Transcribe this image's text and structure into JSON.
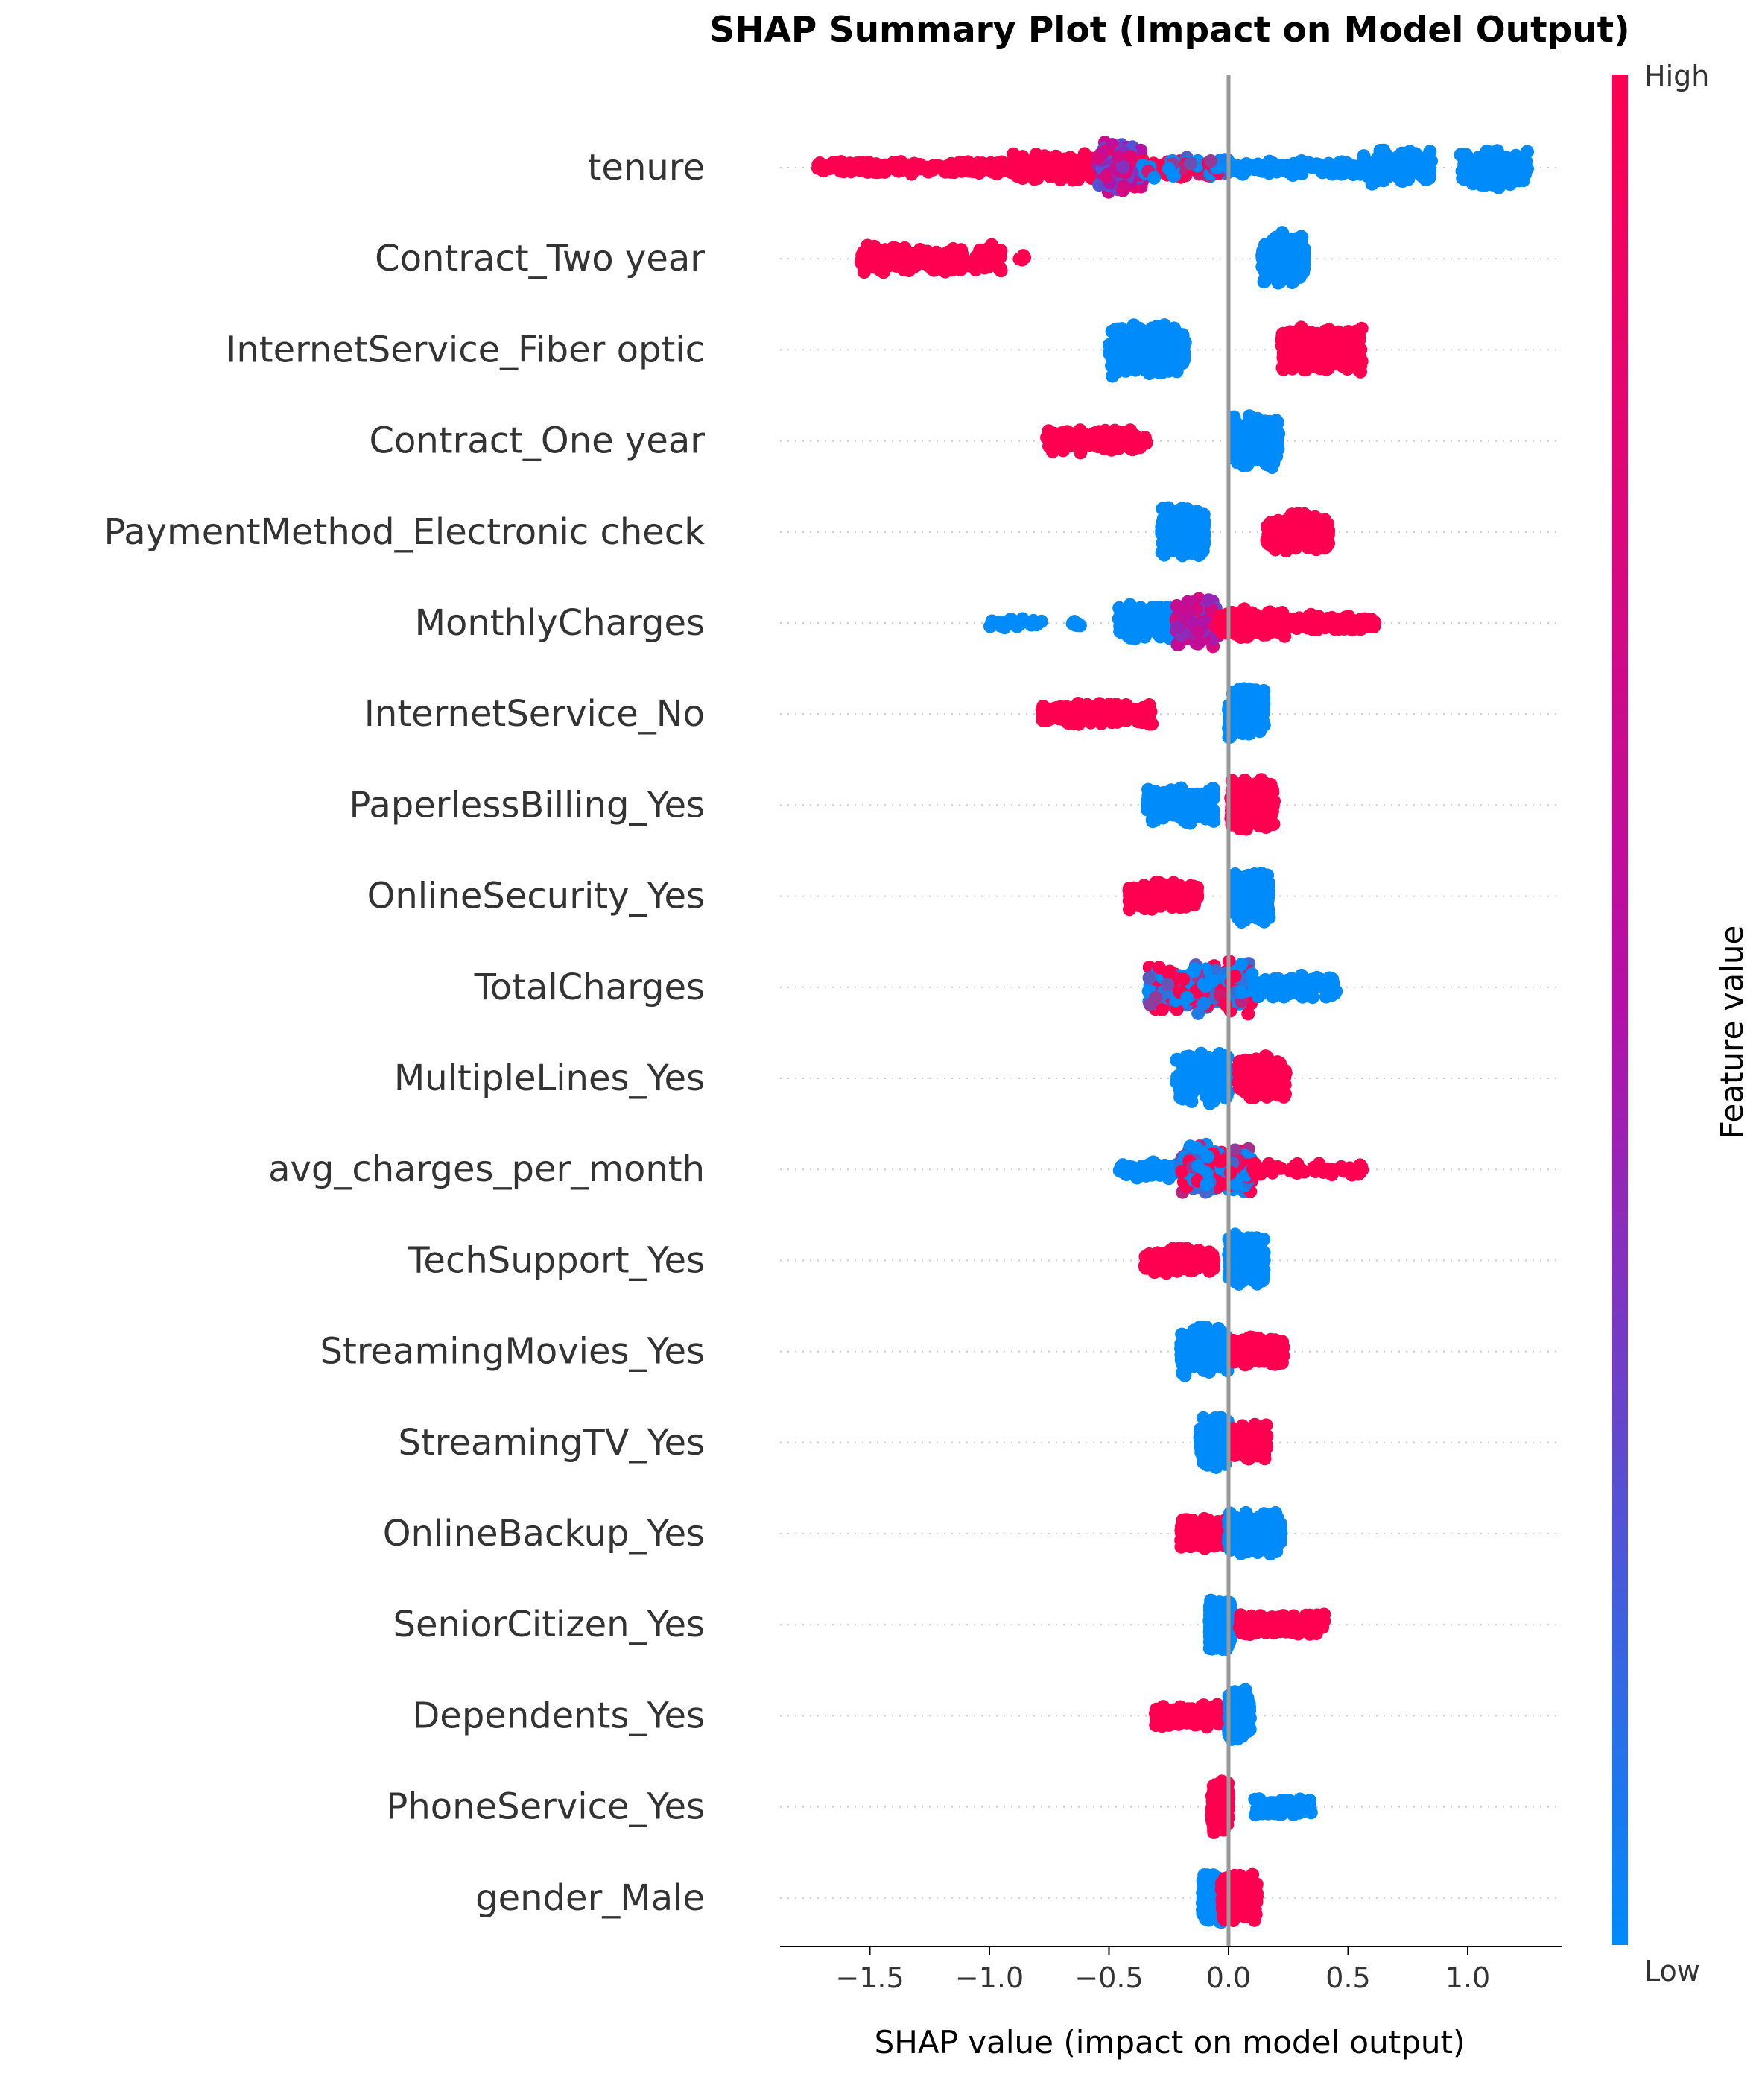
{
  "chart_data": {
    "type": "scatter",
    "subtype": "beeswarm",
    "title": "SHAP Summary Plot (Impact on Model Output)",
    "xlabel": "SHAP value (impact on model output)",
    "xlim": [
      -1.87,
      1.4
    ],
    "xticks": [
      -1.5,
      -1.0,
      -0.5,
      0.0,
      0.5,
      1.0
    ],
    "xtick_labels": [
      "−1.5",
      "−1.0",
      "−0.5",
      "0.0",
      "0.5",
      "1.0"
    ],
    "colorbar": {
      "label": "Feature value",
      "high_label": "High",
      "low_label": "Low",
      "low_color": "#008bfb",
      "high_color": "#ff0051",
      "mid_color": "#b410a8"
    },
    "zero_line_color": "#999999",
    "features": [
      {
        "name": "tenure",
        "clusters": [
          {
            "lo": -1.72,
            "hi": -0.9,
            "color": "high",
            "spread": 0.25,
            "n": 260
          },
          {
            "lo": -0.9,
            "hi": -0.55,
            "color": "high",
            "spread": 0.55,
            "n": 120
          },
          {
            "lo": -0.55,
            "hi": -0.36,
            "color": "mid",
            "spread": 1.0,
            "n": 170
          },
          {
            "lo": -0.36,
            "hi": 0.0,
            "color": "mixed",
            "spread": 0.4,
            "n": 120
          },
          {
            "lo": 0.0,
            "hi": 0.55,
            "color": "low",
            "spread": 0.3,
            "n": 130
          },
          {
            "lo": 0.55,
            "hi": 0.85,
            "color": "low",
            "spread": 0.7,
            "n": 120
          },
          {
            "lo": 0.97,
            "hi": 1.25,
            "color": "low",
            "spread": 0.8,
            "n": 130
          }
        ]
      },
      {
        "name": "Contract_Two year",
        "clusters": [
          {
            "lo": -1.54,
            "hi": -0.95,
            "color": "high",
            "spread": 0.55,
            "n": 220
          },
          {
            "lo": -0.88,
            "hi": -0.85,
            "color": "high",
            "spread": 0.15,
            "n": 4
          },
          {
            "lo": 0.14,
            "hi": 0.32,
            "color": "low",
            "spread": 1.0,
            "n": 230
          }
        ]
      },
      {
        "name": "InternetService_Fiber optic",
        "clusters": [
          {
            "lo": -0.5,
            "hi": -0.18,
            "color": "low",
            "spread": 1.0,
            "n": 260
          },
          {
            "lo": 0.22,
            "hi": 0.56,
            "color": "high",
            "spread": 0.9,
            "n": 260
          }
        ]
      },
      {
        "name": "Contract_One year",
        "clusters": [
          {
            "lo": -0.76,
            "hi": -0.34,
            "color": "high",
            "spread": 0.45,
            "n": 170
          },
          {
            "lo": 0.02,
            "hi": 0.21,
            "color": "low",
            "spread": 1.0,
            "n": 240
          }
        ]
      },
      {
        "name": "PaymentMethod_Electronic check",
        "clusters": [
          {
            "lo": -0.28,
            "hi": -0.1,
            "color": "low",
            "spread": 1.0,
            "n": 220
          },
          {
            "lo": 0.16,
            "hi": 0.42,
            "color": "high",
            "spread": 0.75,
            "n": 220
          }
        ]
      },
      {
        "name": "MonthlyCharges",
        "clusters": [
          {
            "lo": -1.0,
            "hi": -0.78,
            "color": "low",
            "spread": 0.2,
            "n": 25
          },
          {
            "lo": -0.66,
            "hi": -0.6,
            "color": "low",
            "spread": 0.15,
            "n": 6
          },
          {
            "lo": -0.46,
            "hi": -0.2,
            "color": "low",
            "spread": 0.7,
            "n": 130
          },
          {
            "lo": -0.22,
            "hi": -0.04,
            "color": "mid",
            "spread": 1.0,
            "n": 140
          },
          {
            "lo": -0.04,
            "hi": 0.25,
            "color": "high",
            "spread": 0.6,
            "n": 150
          },
          {
            "lo": 0.25,
            "hi": 0.62,
            "color": "high",
            "spread": 0.35,
            "n": 90
          }
        ]
      },
      {
        "name": "InternetService_No",
        "clusters": [
          {
            "lo": -0.78,
            "hi": -0.32,
            "color": "high",
            "spread": 0.45,
            "n": 200
          },
          {
            "lo": 0.0,
            "hi": 0.15,
            "color": "low",
            "spread": 1.0,
            "n": 220
          }
        ]
      },
      {
        "name": "PaperlessBilling_Yes",
        "clusters": [
          {
            "lo": -0.34,
            "hi": -0.06,
            "color": "low",
            "spread": 0.7,
            "n": 200
          },
          {
            "lo": 0.01,
            "hi": 0.19,
            "color": "high",
            "spread": 1.0,
            "n": 230
          }
        ]
      },
      {
        "name": "OnlineSecurity_Yes",
        "clusters": [
          {
            "lo": -0.42,
            "hi": -0.13,
            "color": "high",
            "spread": 0.55,
            "n": 190
          },
          {
            "lo": 0.02,
            "hi": 0.17,
            "color": "low",
            "spread": 1.0,
            "n": 220
          }
        ]
      },
      {
        "name": "TotalCharges",
        "clusters": [
          {
            "lo": -0.34,
            "hi": 0.1,
            "color": "mixed",
            "spread": 1.0,
            "n": 300
          },
          {
            "lo": 0.1,
            "hi": 0.45,
            "color": "low",
            "spread": 0.45,
            "n": 100
          }
        ]
      },
      {
        "name": "MultipleLines_Yes",
        "clusters": [
          {
            "lo": -0.22,
            "hi": 0.0,
            "color": "low",
            "spread": 1.0,
            "n": 210
          },
          {
            "lo": 0.04,
            "hi": 0.24,
            "color": "high",
            "spread": 0.85,
            "n": 220
          }
        ]
      },
      {
        "name": "avg_charges_per_month",
        "clusters": [
          {
            "lo": -0.46,
            "hi": -0.2,
            "color": "low",
            "spread": 0.35,
            "n": 70
          },
          {
            "lo": -0.2,
            "hi": 0.1,
            "color": "mixed",
            "spread": 1.0,
            "n": 240
          },
          {
            "lo": 0.1,
            "hi": 0.56,
            "color": "high",
            "spread": 0.25,
            "n": 50
          }
        ]
      },
      {
        "name": "TechSupport_Yes",
        "clusters": [
          {
            "lo": -0.35,
            "hi": -0.06,
            "color": "high",
            "spread": 0.5,
            "n": 180
          },
          {
            "lo": 0.0,
            "hi": 0.15,
            "color": "low",
            "spread": 1.0,
            "n": 200
          }
        ]
      },
      {
        "name": "StreamingMovies_Yes",
        "clusters": [
          {
            "lo": -0.2,
            "hi": 0.0,
            "color": "low",
            "spread": 1.0,
            "n": 220
          },
          {
            "lo": 0.02,
            "hi": 0.23,
            "color": "high",
            "spread": 0.55,
            "n": 200
          }
        ]
      },
      {
        "name": "StreamingTV_Yes",
        "clusters": [
          {
            "lo": -0.12,
            "hi": 0.0,
            "color": "low",
            "spread": 1.0,
            "n": 220
          },
          {
            "lo": 0.02,
            "hi": 0.16,
            "color": "high",
            "spread": 0.7,
            "n": 200
          }
        ]
      },
      {
        "name": "OnlineBackup_Yes",
        "clusters": [
          {
            "lo": -0.2,
            "hi": 0.0,
            "color": "high",
            "spread": 0.6,
            "n": 200
          },
          {
            "lo": 0.0,
            "hi": 0.22,
            "color": "low",
            "spread": 0.8,
            "n": 200
          }
        ]
      },
      {
        "name": "SeniorCitizen_Yes",
        "clusters": [
          {
            "lo": -0.08,
            "hi": 0.01,
            "color": "low",
            "spread": 1.0,
            "n": 260
          },
          {
            "lo": 0.04,
            "hi": 0.4,
            "color": "high",
            "spread": 0.45,
            "n": 140
          }
        ]
      },
      {
        "name": "Dependents_Yes",
        "clusters": [
          {
            "lo": -0.31,
            "hi": -0.01,
            "color": "high",
            "spread": 0.45,
            "n": 170
          },
          {
            "lo": 0.0,
            "hi": 0.09,
            "color": "low",
            "spread": 1.0,
            "n": 200
          }
        ]
      },
      {
        "name": "PhoneService_Yes",
        "clusters": [
          {
            "lo": -0.07,
            "hi": 0.0,
            "color": "high",
            "spread": 1.0,
            "n": 230
          },
          {
            "lo": 0.11,
            "hi": 0.35,
            "color": "low",
            "spread": 0.4,
            "n": 90
          }
        ]
      },
      {
        "name": "gender_Male",
        "clusters": [
          {
            "lo": -0.11,
            "hi": 0.0,
            "color": "low",
            "spread": 1.0,
            "n": 200
          },
          {
            "lo": -0.03,
            "hi": 0.12,
            "color": "high",
            "spread": 0.9,
            "n": 200
          }
        ]
      }
    ]
  }
}
